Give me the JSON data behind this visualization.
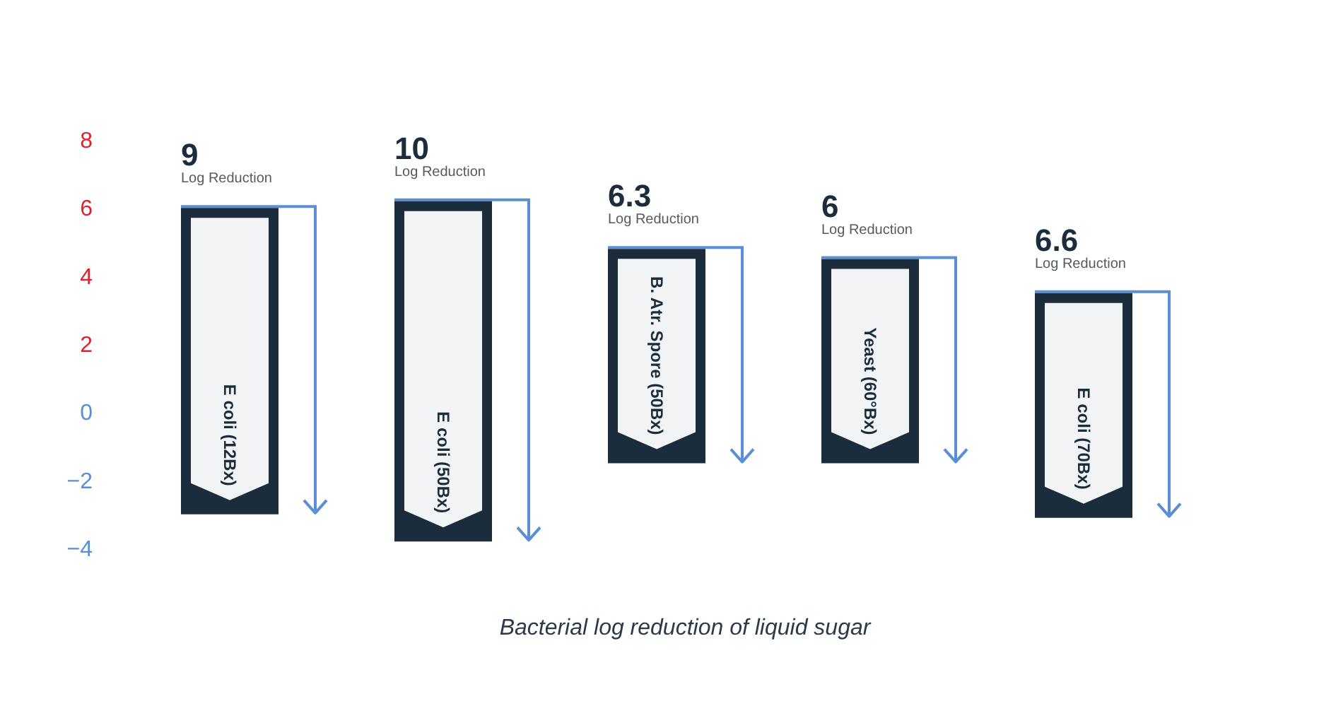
{
  "chart_data": {
    "type": "bar",
    "title": "Bacterial log reduction of liquid sugar",
    "categories": [
      "E coli (12Bx)",
      "E coli (50Bx)",
      "B. Atr. Spore (50Bx)",
      "Yeast (60°Bx)",
      "E coli (70Bx)"
    ],
    "values": [
      9,
      10,
      6.3,
      6,
      6.6
    ],
    "base": [
      -3,
      -3.8,
      -1.5,
      -1.5,
      -3.1
    ],
    "color": "#1b2d3c",
    "ylim": [
      -4,
      8
    ],
    "yticks": [
      -4,
      -2,
      0,
      2,
      4,
      6,
      8
    ],
    "data_labels": true,
    "annotations": [
      {
        "text": "Log Reduction",
        "x": "E coli (12Bx)",
        "y": 6
      },
      {
        "text": "Log Reduction",
        "x": "E coli (50Bx)",
        "y": 6.2
      },
      {
        "text": "Log Reduction",
        "x": "B. Atr. Spore (50Bx)",
        "y": 4.8
      },
      {
        "text": "Log Reduction",
        "x": "Yeast (60°Bx)",
        "y": 4.5
      },
      {
        "text": "Log Reduction",
        "x": "E coli (70Bx)",
        "y": 3.5
      }
    ]
  }
}
